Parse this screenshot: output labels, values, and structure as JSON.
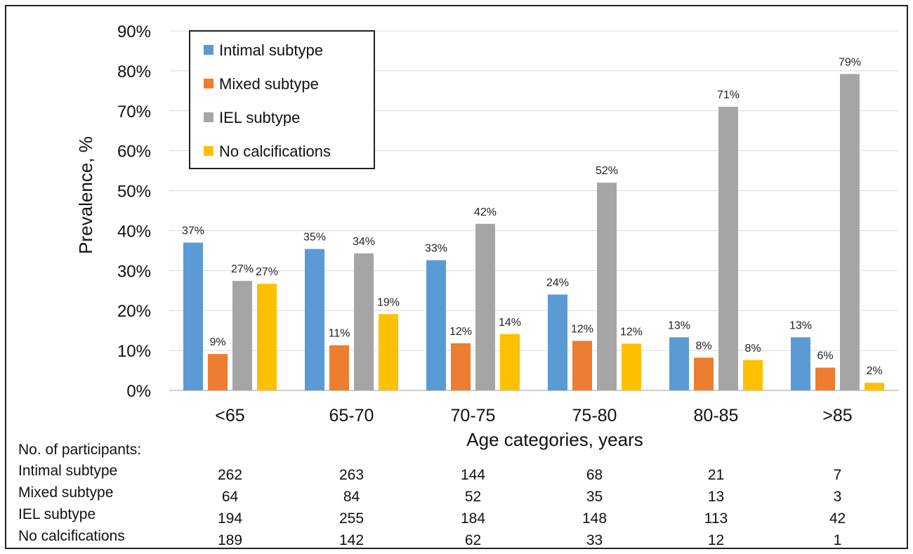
{
  "chart_data": {
    "type": "bar",
    "title": "",
    "ylabel": "Prevalence, %",
    "xlabel": "Age categories, years",
    "ylim": [
      0,
      90
    ],
    "yticks": [
      "0%",
      "10%",
      "20%",
      "30%",
      "40%",
      "50%",
      "60%",
      "70%",
      "80%",
      "90%"
    ],
    "grid": true,
    "legend_position": "top-left",
    "categories": [
      "<65",
      "65-70",
      "70-75",
      "75-80",
      "80-85",
      ">85"
    ],
    "series": [
      {
        "name": "Intimal subtype",
        "color": "#5B9BD5",
        "values": [
          37,
          35.4,
          32.6,
          24,
          13.3,
          13.3
        ],
        "labels": [
          "37%",
          "35%",
          "33%",
          "24%",
          "13%",
          "13%"
        ]
      },
      {
        "name": "Mixed subtype",
        "color": "#ED7D31",
        "values": [
          9.1,
          11.3,
          11.8,
          12.4,
          8.2,
          5.7
        ],
        "labels": [
          "9%",
          "11%",
          "12%",
          "12%",
          "8%",
          "6%"
        ]
      },
      {
        "name": "IEL subtype",
        "color": "#A5A5A5",
        "values": [
          27.4,
          34.3,
          41.7,
          52,
          71,
          79.2
        ],
        "labels": [
          "27%",
          "34%",
          "42%",
          "52%",
          "71%",
          "79%"
        ]
      },
      {
        "name": "No calcifications",
        "color": "#FFC000",
        "values": [
          26.7,
          19.1,
          14.1,
          11.7,
          7.6,
          1.9
        ],
        "labels": [
          "27%",
          "19%",
          "14%",
          "12%",
          "8%",
          "2%"
        ]
      }
    ]
  },
  "participants": {
    "heading": "No. of participants:",
    "rows": [
      {
        "label": "Intimal subtype",
        "values": [
          "262",
          "263",
          "144",
          "68",
          "21",
          "7"
        ]
      },
      {
        "label": "Mixed subtype",
        "values": [
          "64",
          "84",
          "52",
          "35",
          "13",
          "3"
        ]
      },
      {
        "label": "IEL subtype",
        "values": [
          "194",
          "255",
          "184",
          "148",
          "113",
          "42"
        ]
      },
      {
        "label": "No calcifications",
        "values": [
          "189",
          "142",
          "62",
          "33",
          "12",
          "1"
        ]
      }
    ]
  }
}
